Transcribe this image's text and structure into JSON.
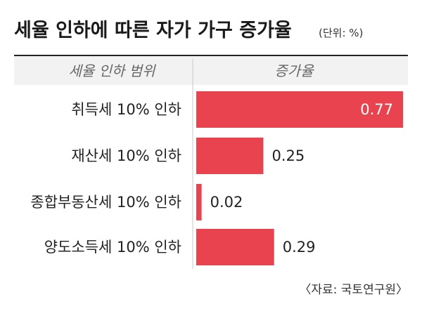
{
  "title": "세율 인하에 따른 자가 가구 증가율",
  "unit_note": "(단위: %)",
  "headers": {
    "category": "세율 인하 범위",
    "value": "증가율"
  },
  "source": "〈자료: 국토연구원〉",
  "colors": {
    "bar": "#e8434f",
    "header_band": "#f2f2f2",
    "divider": "#c8c8c8",
    "title_rule": "#222222"
  },
  "chart_data": {
    "type": "bar",
    "orientation": "horizontal",
    "categories": [
      "취득세 10% 인하",
      "재산세 10% 인하",
      "종합부동산세 10% 인하",
      "양도소득세 10% 인하"
    ],
    "values": [
      0.77,
      0.25,
      0.02,
      0.29
    ],
    "value_labels": [
      "0.77",
      "0.25",
      "0.02",
      "0.29"
    ],
    "title": "세율 인하에 따른 자가 가구 증가율",
    "xlabel": "증가율",
    "ylabel": "세율 인하 범위",
    "xlim": [
      0,
      0.77
    ],
    "grid": false,
    "legend": "none"
  }
}
